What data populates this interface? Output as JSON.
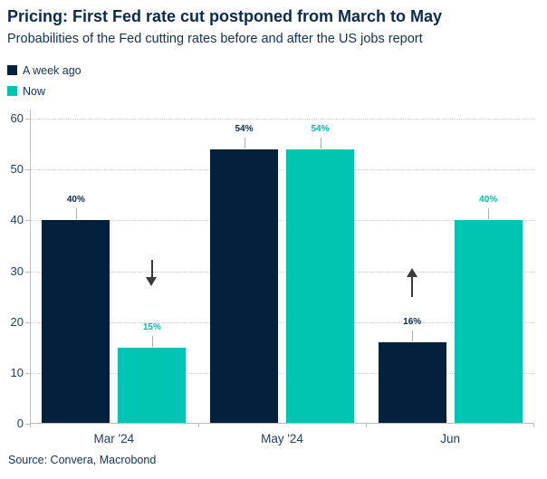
{
  "colors": {
    "navy": "#03203c",
    "teal": "#00c5b2",
    "navy_label_text": "#0a2b4d",
    "teal_label_text": "#00bcad",
    "title_text": "#0a2b4d",
    "axis_text": "#1f3f63",
    "grid_line": "#d5d5d5",
    "axis_line": "#bdbdbd",
    "arrow": "#3a3a3a"
  },
  "chart_data": {
    "type": "bar",
    "title": "Pricing: First Fed rate cut postponed from March to May",
    "subtitle": "Probabilities of the Fed cutting rates before and after the US jobs report",
    "categories": [
      "Mar '24",
      "May '24",
      "Jun"
    ],
    "series": [
      {
        "name": "A week ago",
        "color": "#03203c",
        "label_color": "#0a2b4d",
        "values": [
          40,
          54,
          16
        ],
        "data_labels": [
          "40%",
          "54%",
          "16%"
        ]
      },
      {
        "name": "Now",
        "color": "#00c5b2",
        "label_color": "#00bcad",
        "values": [
          15,
          54,
          40
        ],
        "data_labels": [
          "15%",
          "54%",
          "40%"
        ]
      }
    ],
    "xlabel": "",
    "ylabel": "",
    "ylim": [
      0,
      60
    ],
    "yticks": [
      0,
      10,
      20,
      30,
      40,
      50,
      60
    ],
    "grid": "horizontal-dotted",
    "legend_position": "top-left",
    "annotations": [
      {
        "type": "arrow",
        "direction": "down",
        "category": "Mar '24",
        "category_index": 0,
        "series_index": 1
      },
      {
        "type": "arrow",
        "direction": "up",
        "category": "Jun",
        "category_index": 2,
        "series_index": 0
      }
    ],
    "source": "Source: Convera, Macrobond"
  }
}
